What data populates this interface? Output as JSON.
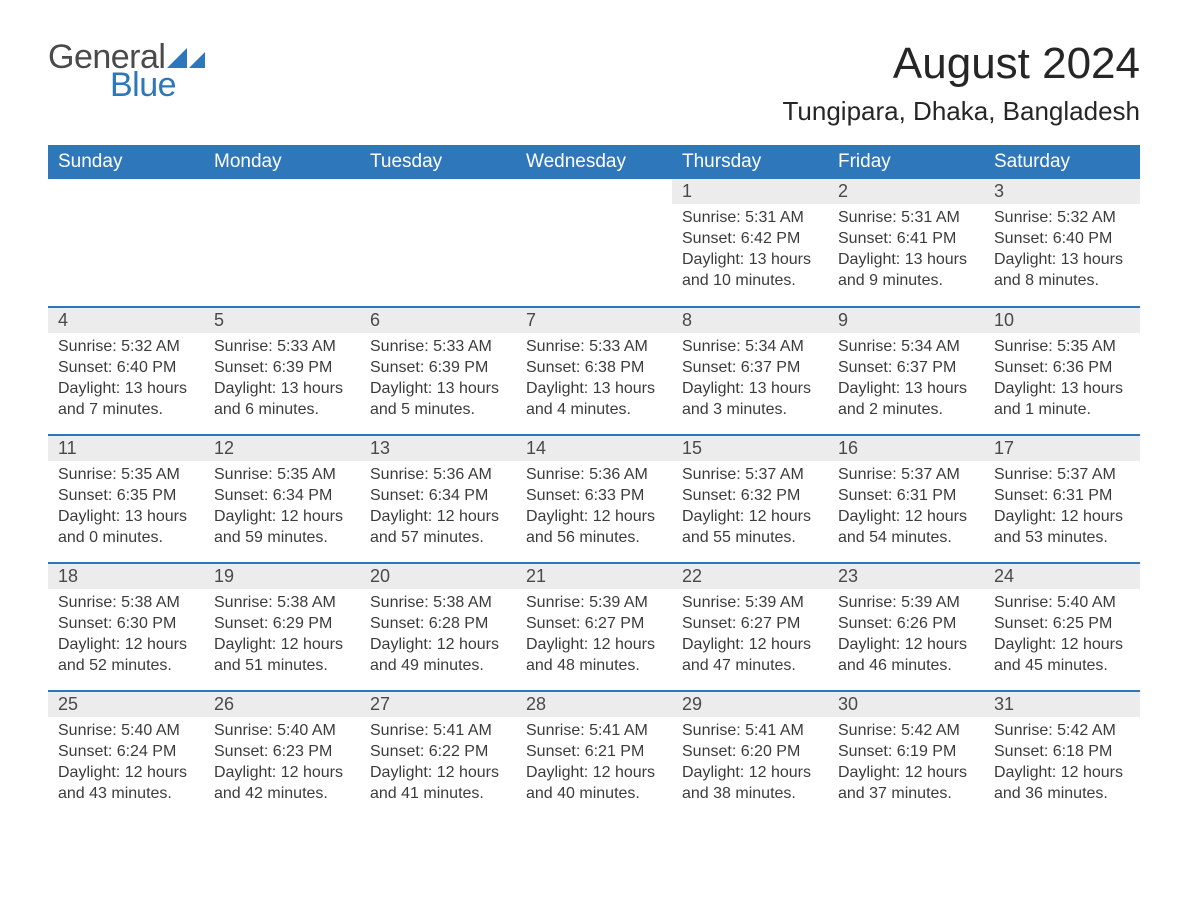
{
  "brand": {
    "word1": "General",
    "word2": "Blue",
    "text_color": "#4a4a4a",
    "accent_color": "#2f77bb"
  },
  "title": "August 2024",
  "location": "Tungipara, Dhaka, Bangladesh",
  "colors": {
    "header_bg": "#2f77bb",
    "header_text": "#ffffff",
    "daynum_bg": "#ececec",
    "rule": "#2f77bb",
    "body_text": "#3c3c3c",
    "page_bg": "#ffffff"
  },
  "fonts": {
    "title_size_pt": 33,
    "location_size_pt": 20,
    "header_size_pt": 14,
    "body_size_pt": 12
  },
  "weekdays": [
    "Sunday",
    "Monday",
    "Tuesday",
    "Wednesday",
    "Thursday",
    "Friday",
    "Saturday"
  ],
  "weeks": [
    [
      null,
      null,
      null,
      null,
      {
        "n": "1",
        "sunrise": "5:31 AM",
        "sunset": "6:42 PM",
        "daylight": "13 hours and 10 minutes."
      },
      {
        "n": "2",
        "sunrise": "5:31 AM",
        "sunset": "6:41 PM",
        "daylight": "13 hours and 9 minutes."
      },
      {
        "n": "3",
        "sunrise": "5:32 AM",
        "sunset": "6:40 PM",
        "daylight": "13 hours and 8 minutes."
      }
    ],
    [
      {
        "n": "4",
        "sunrise": "5:32 AM",
        "sunset": "6:40 PM",
        "daylight": "13 hours and 7 minutes."
      },
      {
        "n": "5",
        "sunrise": "5:33 AM",
        "sunset": "6:39 PM",
        "daylight": "13 hours and 6 minutes."
      },
      {
        "n": "6",
        "sunrise": "5:33 AM",
        "sunset": "6:39 PM",
        "daylight": "13 hours and 5 minutes."
      },
      {
        "n": "7",
        "sunrise": "5:33 AM",
        "sunset": "6:38 PM",
        "daylight": "13 hours and 4 minutes."
      },
      {
        "n": "8",
        "sunrise": "5:34 AM",
        "sunset": "6:37 PM",
        "daylight": "13 hours and 3 minutes."
      },
      {
        "n": "9",
        "sunrise": "5:34 AM",
        "sunset": "6:37 PM",
        "daylight": "13 hours and 2 minutes."
      },
      {
        "n": "10",
        "sunrise": "5:35 AM",
        "sunset": "6:36 PM",
        "daylight": "13 hours and 1 minute."
      }
    ],
    [
      {
        "n": "11",
        "sunrise": "5:35 AM",
        "sunset": "6:35 PM",
        "daylight": "13 hours and 0 minutes."
      },
      {
        "n": "12",
        "sunrise": "5:35 AM",
        "sunset": "6:34 PM",
        "daylight": "12 hours and 59 minutes."
      },
      {
        "n": "13",
        "sunrise": "5:36 AM",
        "sunset": "6:34 PM",
        "daylight": "12 hours and 57 minutes."
      },
      {
        "n": "14",
        "sunrise": "5:36 AM",
        "sunset": "6:33 PM",
        "daylight": "12 hours and 56 minutes."
      },
      {
        "n": "15",
        "sunrise": "5:37 AM",
        "sunset": "6:32 PM",
        "daylight": "12 hours and 55 minutes."
      },
      {
        "n": "16",
        "sunrise": "5:37 AM",
        "sunset": "6:31 PM",
        "daylight": "12 hours and 54 minutes."
      },
      {
        "n": "17",
        "sunrise": "5:37 AM",
        "sunset": "6:31 PM",
        "daylight": "12 hours and 53 minutes."
      }
    ],
    [
      {
        "n": "18",
        "sunrise": "5:38 AM",
        "sunset": "6:30 PM",
        "daylight": "12 hours and 52 minutes."
      },
      {
        "n": "19",
        "sunrise": "5:38 AM",
        "sunset": "6:29 PM",
        "daylight": "12 hours and 51 minutes."
      },
      {
        "n": "20",
        "sunrise": "5:38 AM",
        "sunset": "6:28 PM",
        "daylight": "12 hours and 49 minutes."
      },
      {
        "n": "21",
        "sunrise": "5:39 AM",
        "sunset": "6:27 PM",
        "daylight": "12 hours and 48 minutes."
      },
      {
        "n": "22",
        "sunrise": "5:39 AM",
        "sunset": "6:27 PM",
        "daylight": "12 hours and 47 minutes."
      },
      {
        "n": "23",
        "sunrise": "5:39 AM",
        "sunset": "6:26 PM",
        "daylight": "12 hours and 46 minutes."
      },
      {
        "n": "24",
        "sunrise": "5:40 AM",
        "sunset": "6:25 PM",
        "daylight": "12 hours and 45 minutes."
      }
    ],
    [
      {
        "n": "25",
        "sunrise": "5:40 AM",
        "sunset": "6:24 PM",
        "daylight": "12 hours and 43 minutes."
      },
      {
        "n": "26",
        "sunrise": "5:40 AM",
        "sunset": "6:23 PM",
        "daylight": "12 hours and 42 minutes."
      },
      {
        "n": "27",
        "sunrise": "5:41 AM",
        "sunset": "6:22 PM",
        "daylight": "12 hours and 41 minutes."
      },
      {
        "n": "28",
        "sunrise": "5:41 AM",
        "sunset": "6:21 PM",
        "daylight": "12 hours and 40 minutes."
      },
      {
        "n": "29",
        "sunrise": "5:41 AM",
        "sunset": "6:20 PM",
        "daylight": "12 hours and 38 minutes."
      },
      {
        "n": "30",
        "sunrise": "5:42 AM",
        "sunset": "6:19 PM",
        "daylight": "12 hours and 37 minutes."
      },
      {
        "n": "31",
        "sunrise": "5:42 AM",
        "sunset": "6:18 PM",
        "daylight": "12 hours and 36 minutes."
      }
    ]
  ],
  "labels": {
    "sunrise": "Sunrise: ",
    "sunset": "Sunset: ",
    "daylight": "Daylight: "
  }
}
